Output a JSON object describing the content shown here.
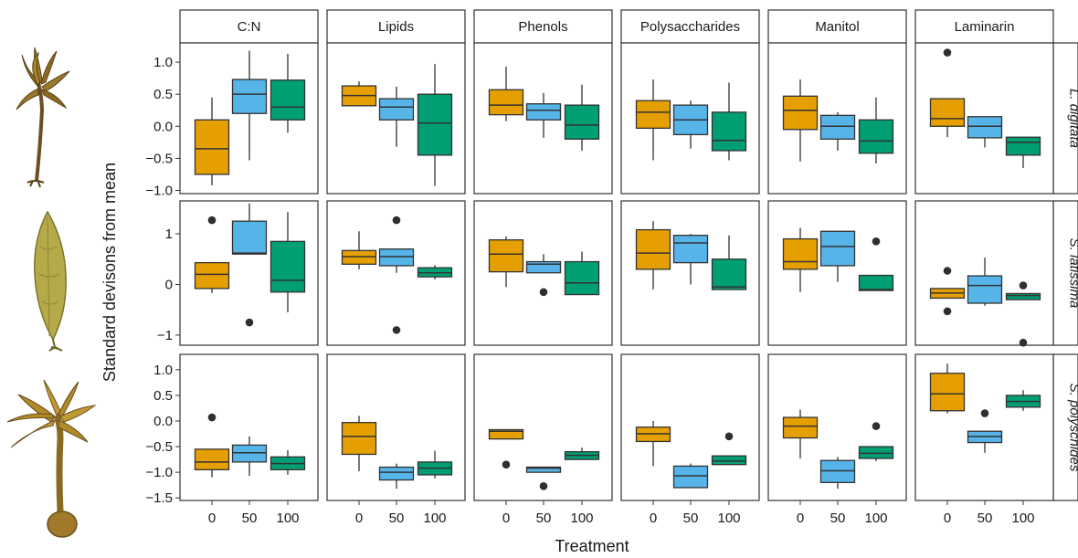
{
  "chart_data": {
    "type": "boxplot",
    "xlabel": "Treatment",
    "ylabel": "Standard devisons from mean",
    "categories": [
      "0",
      "50",
      "100"
    ],
    "colors": [
      "#E69F00",
      "#56B4E9",
      "#009E73"
    ],
    "columns": [
      "C:N",
      "Lipids",
      "Phenols",
      "Polysaccharides",
      "Manitol",
      "Laminarin"
    ],
    "rows": [
      {
        "name": "L. digitata",
        "ylim": [
          -1.05,
          1.3
        ],
        "yticks": [
          -1.0,
          -0.5,
          0.0,
          0.5,
          1.0
        ],
        "yticklabels": [
          "−1.0",
          "−0.5",
          "0.0",
          "0.5",
          "1.0"
        ],
        "panels": [
          [
            {
              "q1": -0.75,
              "median": -0.35,
              "q3": 0.1,
              "lo": -0.92,
              "hi": 0.45,
              "outliers": []
            },
            {
              "q1": 0.2,
              "median": 0.5,
              "q3": 0.73,
              "lo": -0.53,
              "hi": 1.18,
              "outliers": []
            },
            {
              "q1": 0.1,
              "median": 0.3,
              "q3": 0.72,
              "lo": -0.1,
              "hi": 1.13,
              "outliers": []
            }
          ],
          [
            {
              "q1": 0.32,
              "median": 0.48,
              "q3": 0.63,
              "lo": 0.32,
              "hi": 0.7,
              "outliers": []
            },
            {
              "q1": 0.1,
              "median": 0.3,
              "q3": 0.43,
              "lo": -0.32,
              "hi": 0.62,
              "outliers": []
            },
            {
              "q1": -0.45,
              "median": 0.05,
              "q3": 0.5,
              "lo": -0.93,
              "hi": 0.97,
              "outliers": []
            }
          ],
          [
            {
              "q1": 0.18,
              "median": 0.33,
              "q3": 0.57,
              "lo": 0.08,
              "hi": 0.93,
              "outliers": []
            },
            {
              "q1": 0.1,
              "median": 0.25,
              "q3": 0.35,
              "lo": -0.18,
              "hi": 0.52,
              "outliers": []
            },
            {
              "q1": -0.2,
              "median": 0.02,
              "q3": 0.33,
              "lo": -0.38,
              "hi": 0.65,
              "outliers": []
            }
          ],
          [
            {
              "q1": -0.03,
              "median": 0.22,
              "q3": 0.4,
              "lo": -0.53,
              "hi": 0.73,
              "outliers": []
            },
            {
              "q1": -0.13,
              "median": 0.1,
              "q3": 0.33,
              "lo": -0.35,
              "hi": 0.4,
              "outliers": []
            },
            {
              "q1": -0.38,
              "median": -0.22,
              "q3": 0.22,
              "lo": -0.53,
              "hi": 0.68,
              "outliers": []
            }
          ],
          [
            {
              "q1": -0.05,
              "median": 0.25,
              "q3": 0.47,
              "lo": -0.55,
              "hi": 0.73,
              "outliers": []
            },
            {
              "q1": -0.2,
              "median": 0.0,
              "q3": 0.17,
              "lo": -0.38,
              "hi": 0.22,
              "outliers": []
            },
            {
              "q1": -0.42,
              "median": -0.23,
              "q3": 0.1,
              "lo": -0.58,
              "hi": 0.45,
              "outliers": []
            }
          ],
          [
            {
              "q1": 0.0,
              "median": 0.12,
              "q3": 0.43,
              "lo": -0.17,
              "hi": 0.43,
              "outliers": [
                1.15
              ]
            },
            {
              "q1": -0.18,
              "median": 0.0,
              "q3": 0.15,
              "lo": -0.33,
              "hi": 0.15,
              "outliers": []
            },
            {
              "q1": -0.45,
              "median": -0.25,
              "q3": -0.17,
              "lo": -0.65,
              "hi": -0.17,
              "outliers": []
            }
          ]
        ]
      },
      {
        "name": "S. latissima",
        "ylim": [
          -1.2,
          1.65
        ],
        "yticks": [
          -1,
          0,
          1
        ],
        "yticklabels": [
          "−1",
          "0",
          "1"
        ],
        "panels": [
          [
            {
              "q1": -0.08,
              "median": 0.2,
              "q3": 0.43,
              "lo": -0.17,
              "hi": 0.43,
              "outliers": [
                1.27
              ]
            },
            {
              "q1": 0.6,
              "median": 0.62,
              "q3": 1.25,
              "lo": 0.6,
              "hi": 1.6,
              "outliers": [
                -0.75
              ]
            },
            {
              "q1": -0.15,
              "median": 0.08,
              "q3": 0.85,
              "lo": -0.55,
              "hi": 1.43,
              "outliers": []
            }
          ],
          [
            {
              "q1": 0.4,
              "median": 0.55,
              "q3": 0.67,
              "lo": 0.3,
              "hi": 1.05,
              "outliers": []
            },
            {
              "q1": 0.37,
              "median": 0.55,
              "q3": 0.7,
              "lo": 0.23,
              "hi": 0.7,
              "outliers": [
                1.27,
                -0.9
              ]
            },
            {
              "q1": 0.15,
              "median": 0.23,
              "q3": 0.33,
              "lo": 0.1,
              "hi": 0.38,
              "outliers": []
            }
          ],
          [
            {
              "q1": 0.25,
              "median": 0.6,
              "q3": 0.88,
              "lo": -0.05,
              "hi": 0.95,
              "outliers": []
            },
            {
              "q1": 0.23,
              "median": 0.4,
              "q3": 0.45,
              "lo": 0.23,
              "hi": 0.6,
              "outliers": [
                -0.15
              ]
            },
            {
              "q1": -0.2,
              "median": 0.03,
              "q3": 0.45,
              "lo": -0.2,
              "hi": 0.65,
              "outliers": []
            }
          ],
          [
            {
              "q1": 0.3,
              "median": 0.62,
              "q3": 1.08,
              "lo": -0.1,
              "hi": 1.25,
              "outliers": []
            },
            {
              "q1": 0.43,
              "median": 0.82,
              "q3": 0.97,
              "lo": 0.0,
              "hi": 1.0,
              "outliers": []
            },
            {
              "q1": -0.1,
              "median": -0.05,
              "q3": 0.5,
              "lo": -0.1,
              "hi": 0.97,
              "outliers": []
            }
          ],
          [
            {
              "q1": 0.3,
              "median": 0.45,
              "q3": 0.9,
              "lo": -0.15,
              "hi": 1.12,
              "outliers": []
            },
            {
              "q1": 0.37,
              "median": 0.75,
              "q3": 1.05,
              "lo": 0.05,
              "hi": 1.05,
              "outliers": []
            },
            {
              "q1": -0.12,
              "median": -0.1,
              "q3": 0.18,
              "lo": -0.12,
              "hi": 0.18,
              "outliers": [
                0.85
              ]
            }
          ],
          [
            {
              "q1": -0.27,
              "median": -0.17,
              "q3": -0.08,
              "lo": -0.27,
              "hi": -0.08,
              "outliers": [
                0.27,
                -0.53
              ]
            },
            {
              "q1": -0.37,
              "median": -0.02,
              "q3": 0.17,
              "lo": -0.42,
              "hi": 0.53,
              "outliers": []
            },
            {
              "q1": -0.3,
              "median": -0.22,
              "q3": -0.18,
              "lo": -0.3,
              "hi": -0.18,
              "outliers": [
                -0.02,
                -1.15
              ]
            }
          ]
        ]
      },
      {
        "name": "S. polyschides",
        "ylim": [
          -1.55,
          1.3
        ],
        "yticks": [
          -1.5,
          -1.0,
          -0.5,
          0.0,
          0.5,
          1.0
        ],
        "yticklabels": [
          "−1.5",
          "−1.0",
          "−0.5",
          "0.0",
          "0.5",
          "1.0"
        ],
        "panels": [
          [
            {
              "q1": -0.95,
              "median": -0.8,
              "q3": -0.55,
              "lo": -1.1,
              "hi": -0.55,
              "outliers": [
                0.07
              ]
            },
            {
              "q1": -0.8,
              "median": -0.62,
              "q3": -0.47,
              "lo": -1.07,
              "hi": -0.3,
              "outliers": []
            },
            {
              "q1": -0.95,
              "median": -0.83,
              "q3": -0.7,
              "lo": -1.05,
              "hi": -0.57,
              "outliers": []
            }
          ],
          [
            {
              "q1": -0.65,
              "median": -0.3,
              "q3": -0.03,
              "lo": -0.98,
              "hi": 0.1,
              "outliers": []
            },
            {
              "q1": -1.15,
              "median": -1.0,
              "q3": -0.9,
              "lo": -1.32,
              "hi": -0.83,
              "outliers": []
            },
            {
              "q1": -1.05,
              "median": -0.92,
              "q3": -0.8,
              "lo": -1.12,
              "hi": -0.58,
              "outliers": []
            }
          ],
          [
            {
              "q1": -0.35,
              "median": -0.2,
              "q3": -0.17,
              "lo": -0.35,
              "hi": -0.17,
              "outliers": [
                -0.85
              ]
            },
            {
              "q1": -1.0,
              "median": -0.92,
              "q3": -0.9,
              "lo": -1.0,
              "hi": -0.9,
              "outliers": [
                -1.27
              ]
            },
            {
              "q1": -0.75,
              "median": -0.67,
              "q3": -0.6,
              "lo": -0.75,
              "hi": -0.52,
              "outliers": []
            }
          ],
          [
            {
              "q1": -0.4,
              "median": -0.25,
              "q3": -0.12,
              "lo": -0.88,
              "hi": 0.0,
              "outliers": []
            },
            {
              "q1": -1.3,
              "median": -1.07,
              "q3": -0.88,
              "lo": -1.3,
              "hi": -0.83,
              "outliers": []
            },
            {
              "q1": -0.85,
              "median": -0.78,
              "q3": -0.68,
              "lo": -0.85,
              "hi": -0.68,
              "outliers": [
                -0.3
              ]
            }
          ],
          [
            {
              "q1": -0.33,
              "median": -0.1,
              "q3": 0.07,
              "lo": -0.73,
              "hi": 0.22,
              "outliers": []
            },
            {
              "q1": -1.2,
              "median": -0.97,
              "q3": -0.77,
              "lo": -1.32,
              "hi": -0.7,
              "outliers": []
            },
            {
              "q1": -0.73,
              "median": -0.63,
              "q3": -0.5,
              "lo": -0.78,
              "hi": -0.5,
              "outliers": [
                -0.1
              ]
            }
          ],
          [
            {
              "q1": 0.2,
              "median": 0.53,
              "q3": 0.93,
              "lo": 0.15,
              "hi": 1.12,
              "outliers": []
            },
            {
              "q1": -0.42,
              "median": -0.3,
              "q3": -0.2,
              "lo": -0.62,
              "hi": -0.2,
              "outliers": [
                0.15
              ]
            },
            {
              "q1": 0.27,
              "median": 0.38,
              "q3": 0.5,
              "lo": 0.2,
              "hi": 0.6,
              "outliers": []
            }
          ]
        ]
      }
    ]
  }
}
